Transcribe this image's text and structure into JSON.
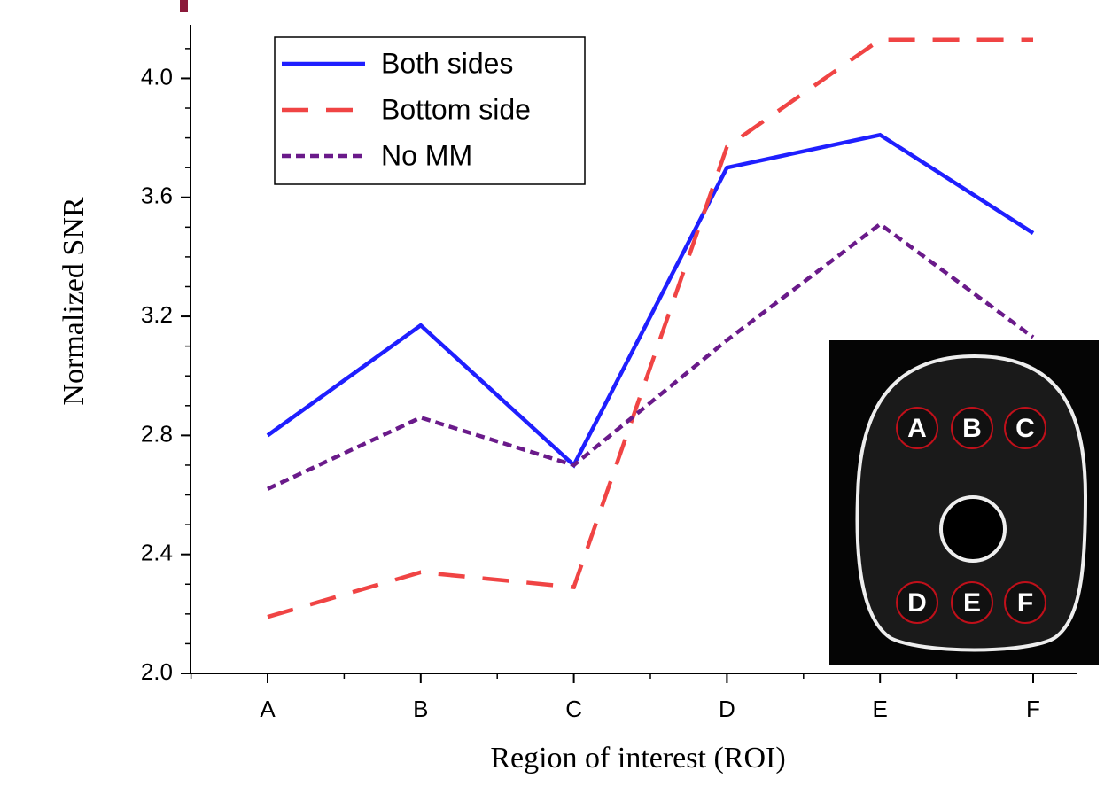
{
  "chart_data": {
    "type": "line",
    "ylabel": "Normalized SNR",
    "xlabel": "Region of interest (ROI)",
    "categories": [
      "A",
      "B",
      "C",
      "D",
      "E",
      "F"
    ],
    "series": [
      {
        "name": "Both sides",
        "color": "#1f1fff",
        "dash": "solid",
        "values": [
          2.8,
          3.17,
          2.7,
          3.7,
          3.81,
          3.48
        ]
      },
      {
        "name": "Bottom side",
        "color": "#f04444",
        "dash": "long",
        "values": [
          2.19,
          2.34,
          2.29,
          3.77,
          4.13,
          4.13
        ]
      },
      {
        "name": "No MM",
        "color": "#6a1a8a",
        "dash": "short",
        "values": [
          2.62,
          2.86,
          2.7,
          3.12,
          3.51,
          3.13
        ]
      }
    ],
    "ylim": [
      2.0,
      4.18
    ],
    "yticks": [
      {
        "value": 2.0,
        "label": "2.0"
      },
      2.4,
      2.8,
      3.2,
      3.6,
      {
        "value": 4.0,
        "label": "4.0"
      }
    ],
    "legend": "upper left",
    "inset_labels": [
      "A",
      "B",
      "C",
      "D",
      "E",
      "F"
    ]
  }
}
